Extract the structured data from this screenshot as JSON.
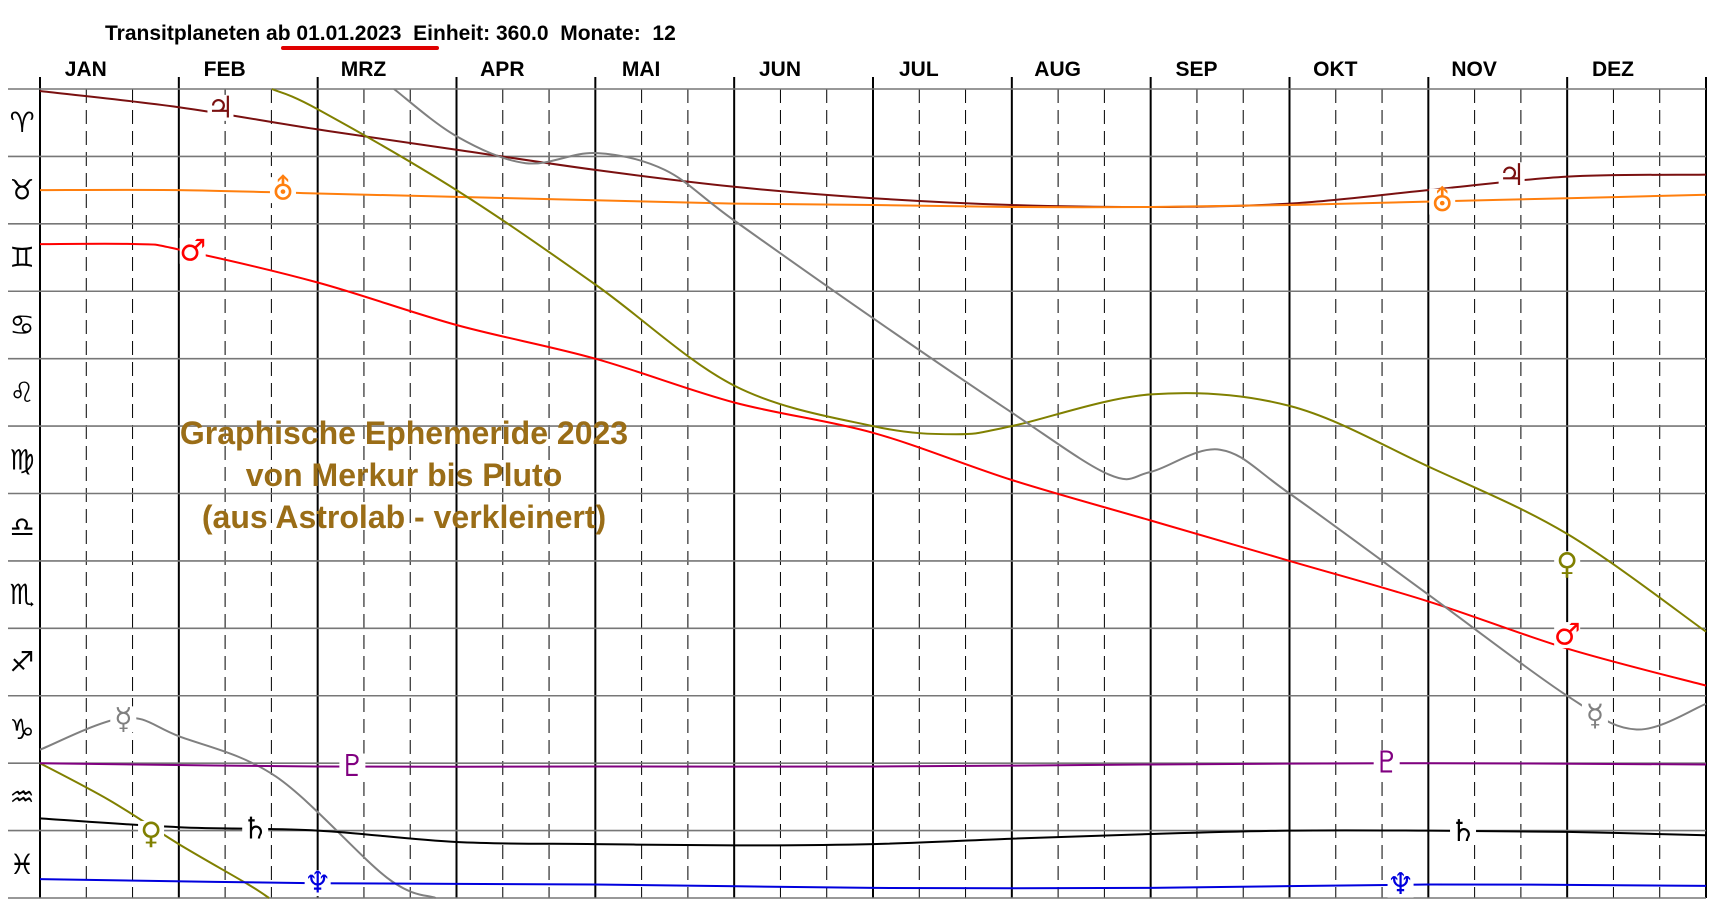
{
  "header": {
    "label_prefix": "Transitplaneten ",
    "date": "ab 01.01.2023",
    "einheit": "  Einheit: 360.0",
    "monate": "  Monate:  12",
    "underline_color": "#e00000"
  },
  "chart_data": {
    "type": "line",
    "title": "",
    "x": {
      "unit": "month",
      "range": [
        0,
        12
      ],
      "tick_labels": [
        "JAN",
        "FEB",
        "MRZ",
        "APR",
        "MAI",
        "JUN",
        "JUL",
        "AUG",
        "SEP",
        "OKT",
        "NOV",
        "DEZ"
      ]
    },
    "y": {
      "unit": "zodiac sign row",
      "range": [
        0,
        12
      ],
      "tick_labels": [
        "♈",
        "♉",
        "♊",
        "♋",
        "♌",
        "♍",
        "♎",
        "♏",
        "♐",
        "♑",
        "♒",
        "♓"
      ]
    },
    "grid": true,
    "annotation": [
      "Graphische Ephemeride 2023",
      "von Merkur bis Pluto",
      "(aus Astrolab - verkleinert)"
    ],
    "annotation_color": "#9a6d17",
    "series": [
      {
        "glyph": "♃",
        "color": "#7a1010",
        "points": [
          [
            0,
            0.03
          ],
          [
            1,
            0.27
          ],
          [
            2,
            0.6
          ],
          [
            3,
            0.9
          ],
          [
            4,
            1.2
          ],
          [
            5,
            1.45
          ],
          [
            6,
            1.62
          ],
          [
            7,
            1.72
          ],
          [
            8,
            1.75
          ],
          [
            9,
            1.7
          ],
          [
            10,
            1.5
          ],
          [
            11,
            1.3
          ],
          [
            12,
            1.27
          ]
        ]
      },
      {
        "glyph": "⛢",
        "color": "#ff7f0e",
        "points": [
          [
            0,
            1.5
          ],
          [
            1,
            1.5
          ],
          [
            2,
            1.55
          ],
          [
            3,
            1.6
          ],
          [
            4,
            1.65
          ],
          [
            5,
            1.7
          ],
          [
            6,
            1.72
          ],
          [
            7,
            1.75
          ],
          [
            8,
            1.75
          ],
          [
            9,
            1.72
          ],
          [
            10,
            1.67
          ],
          [
            11,
            1.62
          ],
          [
            12,
            1.57
          ]
        ]
      },
      {
        "glyph": "♂",
        "color": "#ff0000",
        "points": [
          [
            0,
            2.3
          ],
          [
            0.7,
            2.3
          ],
          [
            1,
            2.38
          ],
          [
            2,
            2.87
          ],
          [
            3,
            3.5
          ],
          [
            4,
            4.0
          ],
          [
            5,
            4.65
          ],
          [
            6,
            5.1
          ],
          [
            7,
            5.8
          ],
          [
            8,
            6.4
          ],
          [
            9,
            7.0
          ],
          [
            10,
            7.6
          ],
          [
            11,
            8.3
          ],
          [
            12,
            8.85
          ]
        ]
      },
      {
        "glyph": "♀",
        "color": "#808000",
        "points": [
          [
            1.67,
            0.0
          ],
          [
            2,
            0.3
          ],
          [
            3,
            1.5
          ],
          [
            4,
            2.9
          ],
          [
            5,
            4.4
          ],
          [
            6,
            5.0
          ],
          [
            6.6,
            5.12
          ],
          [
            7,
            5.0
          ],
          [
            8,
            4.53
          ],
          [
            9,
            4.7
          ],
          [
            10,
            5.6
          ],
          [
            11,
            6.6
          ],
          [
            12,
            8.05
          ]
        ]
      },
      {
        "glyph": "♀",
        "color": "#808000",
        "points": [
          [
            0,
            10.0
          ],
          [
            0.5,
            10.55
          ],
          [
            1,
            11.2
          ],
          [
            1.5,
            11.8
          ],
          [
            1.65,
            12.0
          ]
        ]
      },
      {
        "glyph": "☿",
        "color": "#808080",
        "points": [
          [
            2.55,
            0.0
          ],
          [
            3,
            0.7
          ],
          [
            3.5,
            1.1
          ],
          [
            4,
            0.95
          ],
          [
            4.5,
            1.2
          ],
          [
            5,
            1.95
          ],
          [
            6,
            3.4
          ],
          [
            7,
            4.8
          ],
          [
            7.7,
            5.72
          ],
          [
            8,
            5.68
          ],
          [
            8.5,
            5.35
          ],
          [
            9,
            6.0
          ],
          [
            10,
            7.5
          ],
          [
            11,
            9.0
          ],
          [
            11.5,
            9.5
          ],
          [
            12,
            9.12
          ]
        ]
      },
      {
        "glyph": "☿",
        "color": "#808080",
        "points": [
          [
            0,
            9.8
          ],
          [
            0.6,
            9.33
          ],
          [
            1,
            9.6
          ],
          [
            1.7,
            10.2
          ],
          [
            2.5,
            11.7
          ],
          [
            2.85,
            12.0
          ]
        ]
      },
      {
        "glyph": "♄",
        "color": "#000000",
        "points": [
          [
            0,
            10.82
          ],
          [
            1,
            10.95
          ],
          [
            2,
            11.0
          ],
          [
            3,
            11.17
          ],
          [
            4,
            11.2
          ],
          [
            5,
            11.22
          ],
          [
            6,
            11.2
          ],
          [
            7,
            11.12
          ],
          [
            8,
            11.05
          ],
          [
            9,
            11.0
          ],
          [
            10,
            11.0
          ],
          [
            11,
            11.02
          ],
          [
            12,
            11.07
          ]
        ]
      },
      {
        "glyph": "♇",
        "color": "#800080",
        "points": [
          [
            0,
            10.0
          ],
          [
            2,
            10.05
          ],
          [
            4,
            10.05
          ],
          [
            6,
            10.05
          ],
          [
            8,
            10.02
          ],
          [
            10,
            10.0
          ],
          [
            12,
            10.02
          ]
        ]
      },
      {
        "glyph": "♆",
        "color": "#0000dd",
        "points": [
          [
            0,
            11.72
          ],
          [
            2,
            11.78
          ],
          [
            4,
            11.8
          ],
          [
            6,
            11.85
          ],
          [
            8,
            11.85
          ],
          [
            10,
            11.8
          ],
          [
            12,
            11.82
          ]
        ]
      }
    ],
    "glyph_markers": [
      {
        "glyph": "♃",
        "color": "#7a1010",
        "at": [
          1.3,
          0.28
        ]
      },
      {
        "glyph": "♃",
        "color": "#7a1010",
        "at": [
          10.6,
          1.28
        ]
      },
      {
        "glyph": "⛢",
        "color": "#ff7f0e",
        "at": [
          1.75,
          1.5
        ]
      },
      {
        "glyph": "⛢",
        "color": "#ff7f0e",
        "at": [
          10.1,
          1.67
        ]
      },
      {
        "glyph": "♂",
        "color": "#ff0000",
        "at": [
          1.1,
          2.4
        ]
      },
      {
        "glyph": "♂",
        "color": "#ff0000",
        "at": [
          11.0,
          8.1
        ]
      },
      {
        "glyph": "♀",
        "color": "#808000",
        "at": [
          11.0,
          7.05
        ]
      },
      {
        "glyph": "♀",
        "color": "#808000",
        "at": [
          0.8,
          11.05
        ]
      },
      {
        "glyph": "☿",
        "color": "#808080",
        "at": [
          0.6,
          9.35
        ]
      },
      {
        "glyph": "☿",
        "color": "#808080",
        "at": [
          11.2,
          9.3
        ]
      },
      {
        "glyph": "♄",
        "color": "#000000",
        "at": [
          1.55,
          10.98
        ]
      },
      {
        "glyph": "♄",
        "color": "#000000",
        "at": [
          10.25,
          11.01
        ]
      },
      {
        "glyph": "♇",
        "color": "#800080",
        "at": [
          2.25,
          10.05
        ]
      },
      {
        "glyph": "♇",
        "color": "#800080",
        "at": [
          9.7,
          10.0
        ]
      },
      {
        "glyph": "♆",
        "color": "#0000dd",
        "at": [
          2.0,
          11.78
        ]
      },
      {
        "glyph": "♆",
        "color": "#0000dd",
        "at": [
          9.8,
          11.8
        ]
      }
    ]
  }
}
